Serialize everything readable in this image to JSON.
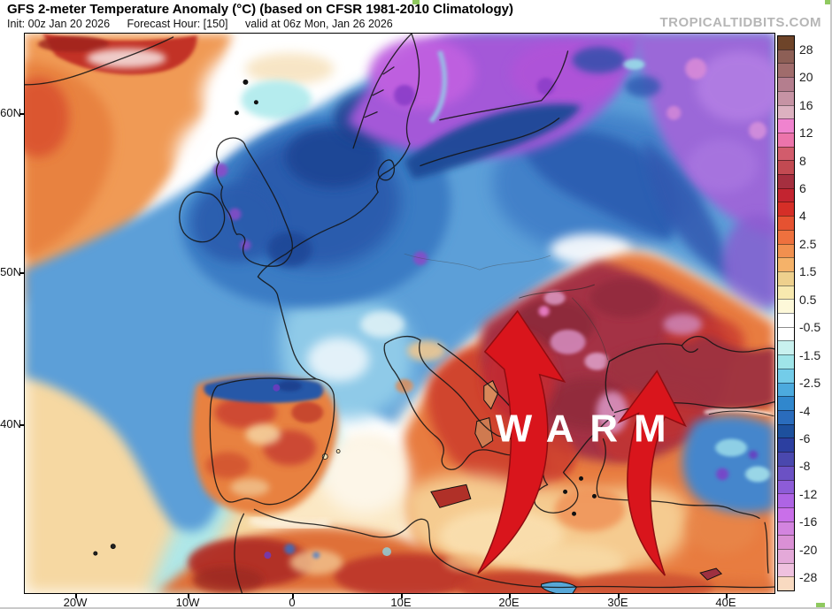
{
  "header": {
    "title": "GFS 2-meter Temperature Anomaly (°C) (based on CFSR 1981-2010 Climatology)",
    "init": "Init: 00z Jan 20 2026",
    "fhour": "Forecast Hour: [150]",
    "valid": "valid at 06z Mon, Jan 26 2026",
    "watermark": "TROPICALTIDBITS.COM"
  },
  "map": {
    "lat_ticks": [
      "60N",
      "50N",
      "40N"
    ],
    "lon_ticks": [
      "20W",
      "10W",
      "0",
      "10E",
      "20E",
      "30E",
      "40E"
    ],
    "annotation": {
      "label": "WARM",
      "text_color": "#ffffff",
      "arrow_color": "#d9151c"
    }
  },
  "colorbar": {
    "tick_labels": [
      "28",
      "20",
      "16",
      "12",
      "8",
      "6",
      "4",
      "2.5",
      "1.5",
      "0.5",
      "-0.5",
      "-1.5",
      "-2.5",
      "-4",
      "-6",
      "-8",
      "-12",
      "-16",
      "-20",
      "-28"
    ],
    "colors": [
      "#6e4429",
      "#8d5f56",
      "#a06c6c",
      "#b47e8e",
      "#c693a4",
      "#dcb1c0",
      "#f083cf",
      "#ec74ab",
      "#d25c6c",
      "#c24a52",
      "#a52f3f",
      "#c32430",
      "#d52e27",
      "#e65231",
      "#ee713e",
      "#f1904f",
      "#f5b269",
      "#eed08d",
      "#f8e9af",
      "#fdf8d9",
      "#ffffff",
      "#ffffff",
      "#c9f1ef",
      "#9fe5e9",
      "#73cce9",
      "#4caade",
      "#3087cd",
      "#2a6cbc",
      "#1d509d",
      "#2c3fa0",
      "#4a48ae",
      "#6b51c4",
      "#8d5cd7",
      "#ae64e4",
      "#c96fe9",
      "#d384df",
      "#da90d5",
      "#e4a9d9",
      "#efc1df",
      "#f9dac1"
    ]
  }
}
